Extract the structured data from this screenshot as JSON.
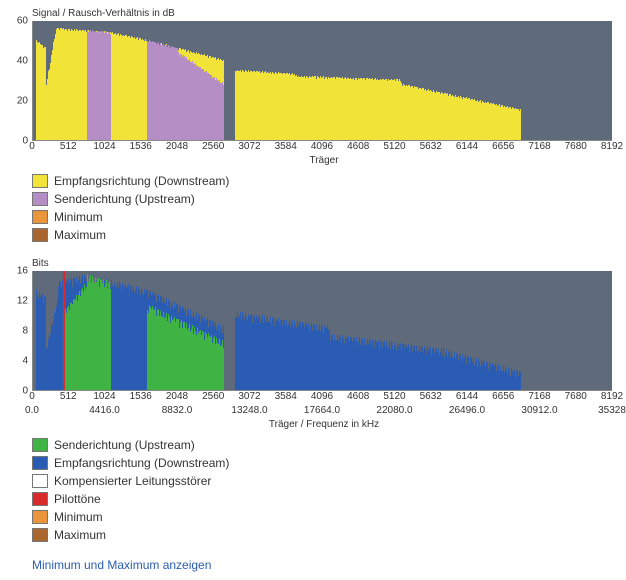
{
  "chart1": {
    "type": "area-bar",
    "title": "Signal / Rausch-Verhältnis in dB",
    "x_label": "Träger",
    "background_color": "#5f6b7a",
    "ylim": [
      0,
      60
    ],
    "yticks": [
      0,
      20,
      40,
      60
    ],
    "xrange": [
      0,
      8192
    ],
    "xticks": [
      0,
      512,
      1024,
      1536,
      2048,
      2560,
      3072,
      3584,
      4096,
      4608,
      5120,
      5632,
      6144,
      6656,
      7168,
      7680,
      8192
    ],
    "series": [
      {
        "name": "downstream",
        "color": "#f2e338",
        "segments": [
          {
            "from": 40,
            "to": 180,
            "h0": 50,
            "h1": 46
          },
          {
            "from": 180,
            "to": 320,
            "h0": 26,
            "h1": 54
          },
          {
            "from": 320,
            "to": 1100,
            "h0": 56,
            "h1": 54
          },
          {
            "from": 1100,
            "to": 1620,
            "h0": 54,
            "h1": 50
          },
          {
            "from": 1620,
            "to": 2700,
            "h0": 50,
            "h1": 40
          },
          {
            "from": 2860,
            "to": 3700,
            "h0": 35,
            "h1": 33
          },
          {
            "from": 3700,
            "to": 5200,
            "h0": 32,
            "h1": 30
          },
          {
            "from": 5200,
            "to": 6900,
            "h0": 28,
            "h1": 15
          }
        ]
      },
      {
        "name": "upstream",
        "color": "#b48ec5",
        "segments": [
          {
            "from": 760,
            "to": 1100,
            "h0": 55,
            "h1": 54
          },
          {
            "from": 1620,
            "to": 2050,
            "h0": 50,
            "h1": 46
          },
          {
            "from": 2050,
            "to": 2700,
            "h0": 44,
            "h1": 28
          }
        ]
      }
    ],
    "legend": [
      {
        "label": "Empfangsrichtung (Downstream)",
        "color": "#f2e338"
      },
      {
        "label": "Senderichtung (Upstream)",
        "color": "#b48ec5"
      },
      {
        "label": "Minimum",
        "color": "#e8953c"
      },
      {
        "label": "Maximum",
        "color": "#a9672f"
      }
    ]
  },
  "chart2": {
    "type": "area-bar",
    "title": "Bits",
    "x_label": "Träger / Frequenz in kHz",
    "background_color": "#5f6b7a",
    "ylim": [
      0,
      16
    ],
    "yticks": [
      0,
      4,
      8,
      12,
      16
    ],
    "xrange": [
      0,
      8192
    ],
    "xticks_top": [
      0,
      512,
      1024,
      1536,
      2048,
      2560,
      3072,
      3584,
      4096,
      4608,
      5120,
      5632,
      6144,
      6656,
      7168,
      7680,
      8192
    ],
    "xticks_bottom": [
      "0.0",
      "4416.0",
      "8832.0",
      "13248.0",
      "17664.0",
      "22080.0",
      "26496.0",
      "30912.0",
      "35328"
    ],
    "xticks_bottom_pos": [
      0,
      1024,
      2048,
      3072,
      4096,
      5120,
      6144,
      7168,
      8192
    ],
    "series": [
      {
        "name": "downstream",
        "color": "#2b5cb3",
        "segments": [
          {
            "from": 40,
            "to": 180,
            "h0": 13,
            "h1": 12
          },
          {
            "from": 180,
            "to": 350,
            "h0": 5,
            "h1": 12
          },
          {
            "from": 350,
            "to": 760,
            "h0": 14,
            "h1": 15
          },
          {
            "from": 760,
            "to": 1620,
            "h0": 15,
            "h1": 13
          },
          {
            "from": 1620,
            "to": 2700,
            "h0": 13,
            "h1": 8
          },
          {
            "from": 2860,
            "to": 4200,
            "h0": 10,
            "h1": 8
          },
          {
            "from": 4200,
            "to": 5800,
            "h0": 7,
            "h1": 5
          },
          {
            "from": 5800,
            "to": 6900,
            "h0": 5,
            "h1": 2
          }
        ]
      },
      {
        "name": "upstream",
        "color": "#3fb344",
        "segments": [
          {
            "from": 430,
            "to": 760,
            "h0": 10,
            "h1": 14
          },
          {
            "from": 760,
            "to": 1100,
            "h0": 15,
            "h1": 14
          },
          {
            "from": 1620,
            "to": 2050,
            "h0": 11,
            "h1": 9
          },
          {
            "from": 2050,
            "to": 2700,
            "h0": 9,
            "h1": 6
          }
        ]
      }
    ],
    "pilot": {
      "color": "#d92b2b",
      "positions": [
        420
      ]
    },
    "legend": [
      {
        "label": "Senderichtung (Upstream)",
        "color": "#3fb344"
      },
      {
        "label": "Empfangsrichtung (Downstream)",
        "color": "#2b5cb3"
      },
      {
        "label": "Kompensierter Leitungsstörer",
        "color": "#ffffff"
      },
      {
        "label": "Pilottöne",
        "color": "#d92b2b"
      },
      {
        "label": "Minimum",
        "color": "#e8953c"
      },
      {
        "label": "Maximum",
        "color": "#a9672f"
      }
    ]
  },
  "show_minmax_label": "Minimum und Maximum anzeigen"
}
